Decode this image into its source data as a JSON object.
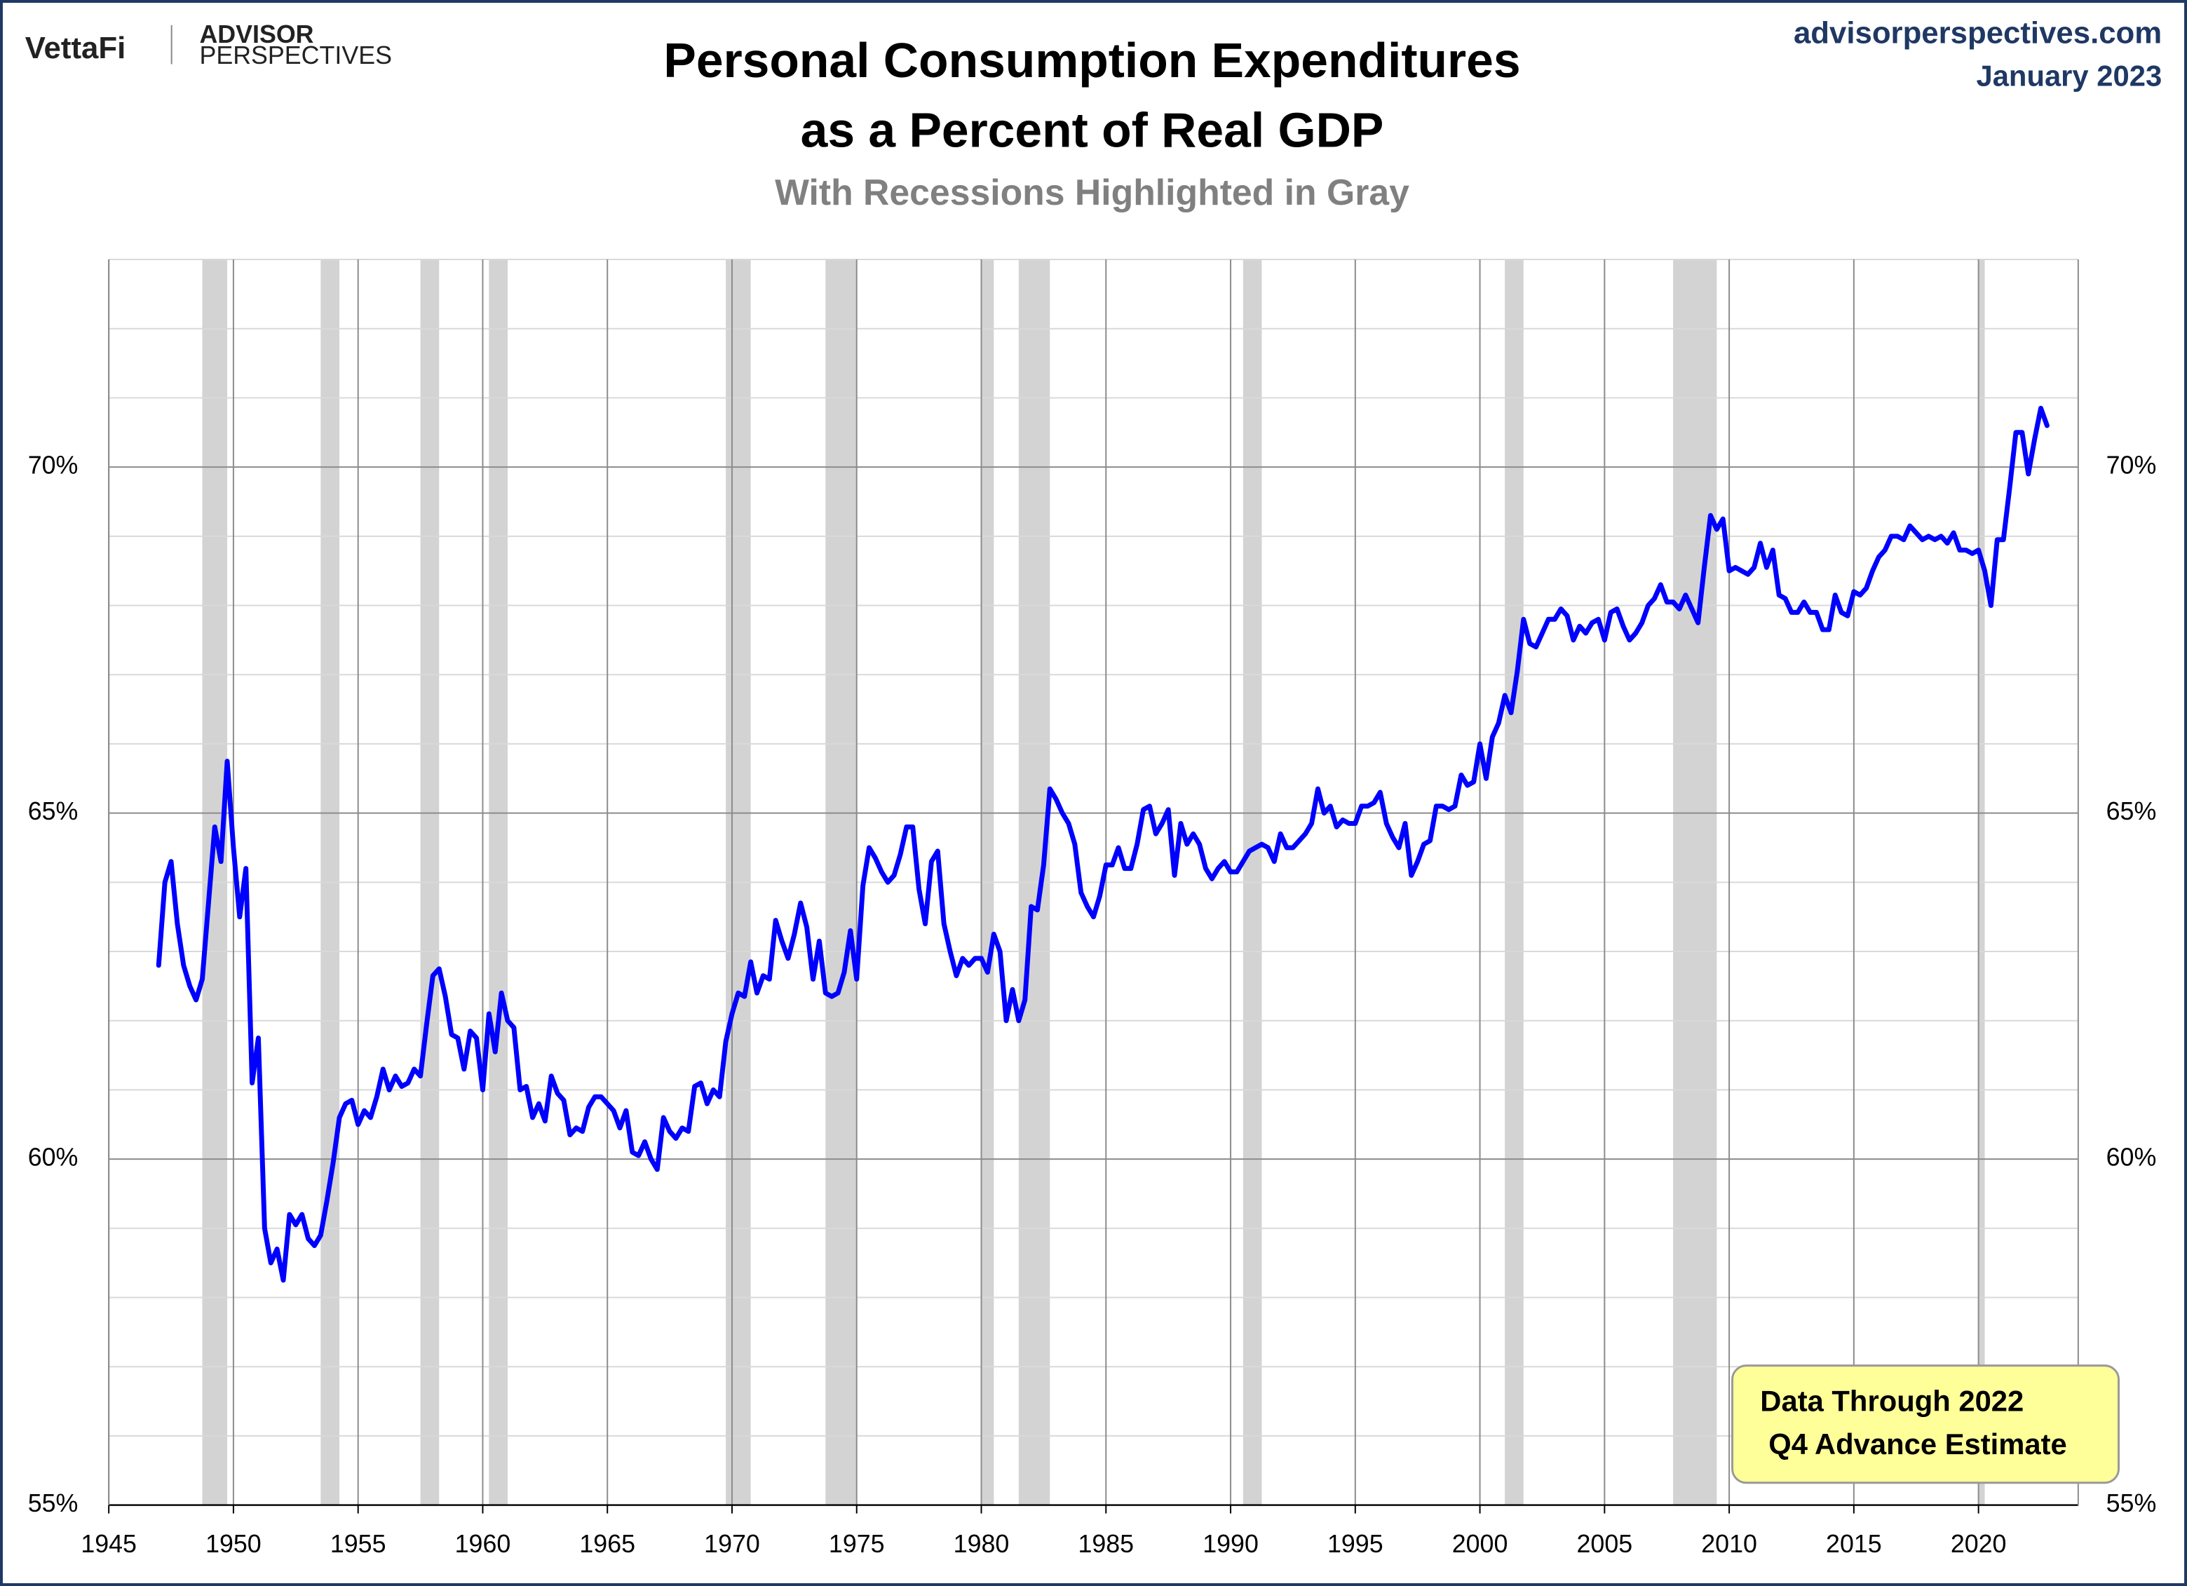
{
  "header": {
    "brand": "VettaFi",
    "logo_line1": "ADVISOR",
    "logo_line2": "PERSPECTIVES",
    "website": "advisorperspectives.com",
    "date": "January 2023"
  },
  "chart_data": {
    "type": "line",
    "title": [
      "Personal Consumption Expenditures",
      "as a Percent of Real GDP"
    ],
    "subtitle": "With Recessions Highlighted in Gray",
    "annotation": [
      "Data Through 2022",
      "Q4 Advance Estimate"
    ],
    "color": "#0000ff",
    "recession_color": "#d3d3d3",
    "grid": true,
    "xlim": [
      1945,
      2024
    ],
    "ylim": [
      55,
      73
    ],
    "xticks": [
      1945,
      1950,
      1955,
      1960,
      1965,
      1970,
      1975,
      1980,
      1985,
      1990,
      1995,
      2000,
      2005,
      2010,
      2015,
      2020
    ],
    "yticks": [
      {
        "value": 55,
        "label": "55%"
      },
      {
        "value": 60,
        "label": "60%"
      },
      {
        "value": 65,
        "label": "65%"
      },
      {
        "value": 70,
        "label": "70%"
      }
    ],
    "yminor_ticks": [
      56,
      57,
      58,
      59,
      61,
      62,
      63,
      64,
      66,
      67,
      68,
      69,
      71,
      72,
      73
    ],
    "recessions": [
      [
        1948.75,
        1949.75
      ],
      [
        1953.5,
        1954.25
      ],
      [
        1957.5,
        1958.25
      ],
      [
        1960.25,
        1961.0
      ],
      [
        1969.75,
        1970.75
      ],
      [
        1973.75,
        1975.0
      ],
      [
        1980.0,
        1980.5
      ],
      [
        1981.5,
        1982.75
      ],
      [
        1990.5,
        1991.25
      ],
      [
        2001.0,
        2001.75
      ],
      [
        2007.75,
        2009.5
      ],
      [
        2020.0,
        2020.25
      ]
    ],
    "x": [
      1947,
      1947.25,
      1947.5,
      1947.75,
      1948,
      1948.25,
      1948.5,
      1948.75,
      1949,
      1949.25,
      1949.5,
      1949.75,
      1950,
      1950.25,
      1950.5,
      1950.75,
      1951,
      1951.25,
      1951.5,
      1951.75,
      1952,
      1952.25,
      1952.5,
      1952.75,
      1953,
      1953.25,
      1953.5,
      1953.75,
      1954,
      1954.25,
      1954.5,
      1954.75,
      1955,
      1955.25,
      1955.5,
      1955.75,
      1956,
      1956.25,
      1956.5,
      1956.75,
      1957,
      1957.25,
      1957.5,
      1957.75,
      1958,
      1958.25,
      1958.5,
      1958.75,
      1959,
      1959.25,
      1959.5,
      1959.75,
      1960,
      1960.25,
      1960.5,
      1960.75,
      1961,
      1961.25,
      1961.5,
      1961.75,
      1962,
      1962.25,
      1962.5,
      1962.75,
      1963,
      1963.25,
      1963.5,
      1963.75,
      1964,
      1964.25,
      1964.5,
      1964.75,
      1965,
      1965.25,
      1965.5,
      1965.75,
      1966,
      1966.25,
      1966.5,
      1966.75,
      1967,
      1967.25,
      1967.5,
      1967.75,
      1968,
      1968.25,
      1968.5,
      1968.75,
      1969,
      1969.25,
      1969.5,
      1969.75,
      1970,
      1970.25,
      1970.5,
      1970.75,
      1971,
      1971.25,
      1971.5,
      1971.75,
      1972,
      1972.25,
      1972.5,
      1972.75,
      1973,
      1973.25,
      1973.5,
      1973.75,
      1974,
      1974.25,
      1974.5,
      1974.75,
      1975,
      1975.25,
      1975.5,
      1975.75,
      1976,
      1976.25,
      1976.5,
      1976.75,
      1977,
      1977.25,
      1977.5,
      1977.75,
      1978,
      1978.25,
      1978.5,
      1978.75,
      1979,
      1979.25,
      1979.5,
      1979.75,
      1980,
      1980.25,
      1980.5,
      1980.75,
      1981,
      1981.25,
      1981.5,
      1981.75,
      1982,
      1982.25,
      1982.5,
      1982.75,
      1983,
      1983.25,
      1983.5,
      1983.75,
      1984,
      1984.25,
      1984.5,
      1984.75,
      1985,
      1985.25,
      1985.5,
      1985.75,
      1986,
      1986.25,
      1986.5,
      1986.75,
      1987,
      1987.25,
      1987.5,
      1987.75,
      1988,
      1988.25,
      1988.5,
      1988.75,
      1989,
      1989.25,
      1989.5,
      1989.75,
      1990,
      1990.25,
      1990.5,
      1990.75,
      1991,
      1991.25,
      1991.5,
      1991.75,
      1992,
      1992.25,
      1992.5,
      1992.75,
      1993,
      1993.25,
      1993.5,
      1993.75,
      1994,
      1994.25,
      1994.5,
      1994.75,
      1995,
      1995.25,
      1995.5,
      1995.75,
      1996,
      1996.25,
      1996.5,
      1996.75,
      1997,
      1997.25,
      1997.5,
      1997.75,
      1998,
      1998.25,
      1998.5,
      1998.75,
      1999,
      1999.25,
      1999.5,
      1999.75,
      2000,
      2000.25,
      2000.5,
      2000.75,
      2001,
      2001.25,
      2001.5,
      2001.75,
      2002,
      2002.25,
      2002.5,
      2002.75,
      2003,
      2003.25,
      2003.5,
      2003.75,
      2004,
      2004.25,
      2004.5,
      2004.75,
      2005,
      2005.25,
      2005.5,
      2005.75,
      2006,
      2006.25,
      2006.5,
      2006.75,
      2007,
      2007.25,
      2007.5,
      2007.75,
      2008,
      2008.25,
      2008.5,
      2008.75,
      2009,
      2009.25,
      2009.5,
      2009.75,
      2010,
      2010.25,
      2010.5,
      2010.75,
      2011,
      2011.25,
      2011.5,
      2011.75,
      2012,
      2012.25,
      2012.5,
      2012.75,
      2013,
      2013.25,
      2013.5,
      2013.75,
      2014,
      2014.25,
      2014.5,
      2014.75,
      2015,
      2015.25,
      2015.5,
      2015.75,
      2016,
      2016.25,
      2016.5,
      2016.75,
      2017,
      2017.25,
      2017.5,
      2017.75,
      2018,
      2018.25,
      2018.5,
      2018.75,
      2019,
      2019.25,
      2019.5,
      2019.75,
      2020,
      2020.25,
      2020.5,
      2020.75,
      2021,
      2021.25,
      2021.5,
      2021.75,
      2022,
      2022.25,
      2022.5,
      2022.75
    ],
    "values": [
      62.8,
      64.0,
      64.3,
      63.4,
      62.8,
      62.5,
      62.3,
      62.6,
      63.7,
      64.8,
      64.3,
      65.75,
      64.5,
      63.5,
      64.2,
      61.1,
      61.75,
      59.0,
      58.5,
      58.7,
      58.25,
      59.2,
      59.05,
      59.2,
      58.85,
      58.75,
      58.9,
      59.4,
      59.95,
      60.6,
      60.8,
      60.85,
      60.5,
      60.7,
      60.6,
      60.9,
      61.3,
      61.0,
      61.2,
      61.05,
      61.1,
      61.3,
      61.2,
      61.95,
      62.65,
      62.75,
      62.35,
      61.8,
      61.75,
      61.3,
      61.85,
      61.75,
      61.0,
      62.1,
      61.55,
      62.4,
      62.0,
      61.9,
      61.0,
      61.05,
      60.6,
      60.8,
      60.55,
      61.2,
      60.95,
      60.85,
      60.35,
      60.45,
      60.4,
      60.75,
      60.9,
      60.9,
      60.8,
      60.7,
      60.45,
      60.7,
      60.1,
      60.05,
      60.25,
      60.0,
      59.85,
      60.6,
      60.4,
      60.3,
      60.45,
      60.4,
      61.05,
      61.1,
      60.8,
      61.0,
      60.9,
      61.7,
      62.1,
      62.4,
      62.35,
      62.85,
      62.4,
      62.65,
      62.6,
      63.45,
      63.15,
      62.9,
      63.25,
      63.7,
      63.35,
      62.6,
      63.15,
      62.4,
      62.35,
      62.4,
      62.7,
      63.3,
      62.6,
      63.95,
      64.5,
      64.35,
      64.15,
      64.0,
      64.1,
      64.4,
      64.8,
      64.8,
      63.9,
      63.4,
      64.3,
      64.45,
      63.4,
      63.0,
      62.65,
      62.9,
      62.8,
      62.9,
      62.9,
      62.7,
      63.25,
      63.0,
      62.0,
      62.45,
      62.0,
      62.3,
      63.65,
      63.6,
      64.25,
      65.35,
      65.2,
      65.0,
      64.85,
      64.55,
      63.85,
      63.65,
      63.5,
      63.8,
      64.25,
      64.25,
      64.5,
      64.2,
      64.2,
      64.55,
      65.05,
      65.1,
      64.7,
      64.85,
      65.05,
      64.1,
      64.85,
      64.55,
      64.7,
      64.55,
      64.2,
      64.05,
      64.2,
      64.3,
      64.15,
      64.15,
      64.3,
      64.45,
      64.5,
      64.55,
      64.5,
      64.3,
      64.7,
      64.5,
      64.5,
      64.6,
      64.7,
      64.85,
      65.35,
      65.0,
      65.1,
      64.8,
      64.9,
      64.85,
      64.85,
      65.1,
      65.1,
      65.15,
      65.3,
      64.85,
      64.65,
      64.5,
      64.85,
      64.1,
      64.3,
      64.55,
      64.6,
      65.1,
      65.1,
      65.05,
      65.1,
      65.55,
      65.4,
      65.45,
      66.0,
      65.5,
      66.1,
      66.3,
      66.7,
      66.45,
      67.05,
      67.8,
      67.45,
      67.4,
      67.6,
      67.8,
      67.8,
      67.95,
      67.85,
      67.5,
      67.7,
      67.6,
      67.75,
      67.8,
      67.5,
      67.9,
      67.95,
      67.7,
      67.5,
      67.6,
      67.75,
      68.0,
      68.1,
      68.3,
      68.05,
      68.05,
      67.95,
      68.15,
      67.95,
      67.75,
      68.55,
      69.3,
      69.1,
      69.25,
      68.5,
      68.55,
      68.5,
      68.45,
      68.55,
      68.9,
      68.55,
      68.8,
      68.15,
      68.1,
      67.9,
      67.9,
      68.05,
      67.9,
      67.9,
      67.65,
      67.65,
      68.15,
      67.9,
      67.85,
      68.2,
      68.15,
      68.25,
      68.5,
      68.7,
      68.8,
      69.0,
      69.0,
      68.95,
      69.15,
      69.05,
      68.95,
      69.0,
      68.95,
      69.0,
      68.9,
      69.05,
      68.8,
      68.8,
      68.75,
      68.8,
      68.5,
      68.0,
      68.95,
      68.95,
      69.7,
      70.5,
      70.5,
      69.9,
      70.4,
      70.85,
      70.6
    ]
  }
}
